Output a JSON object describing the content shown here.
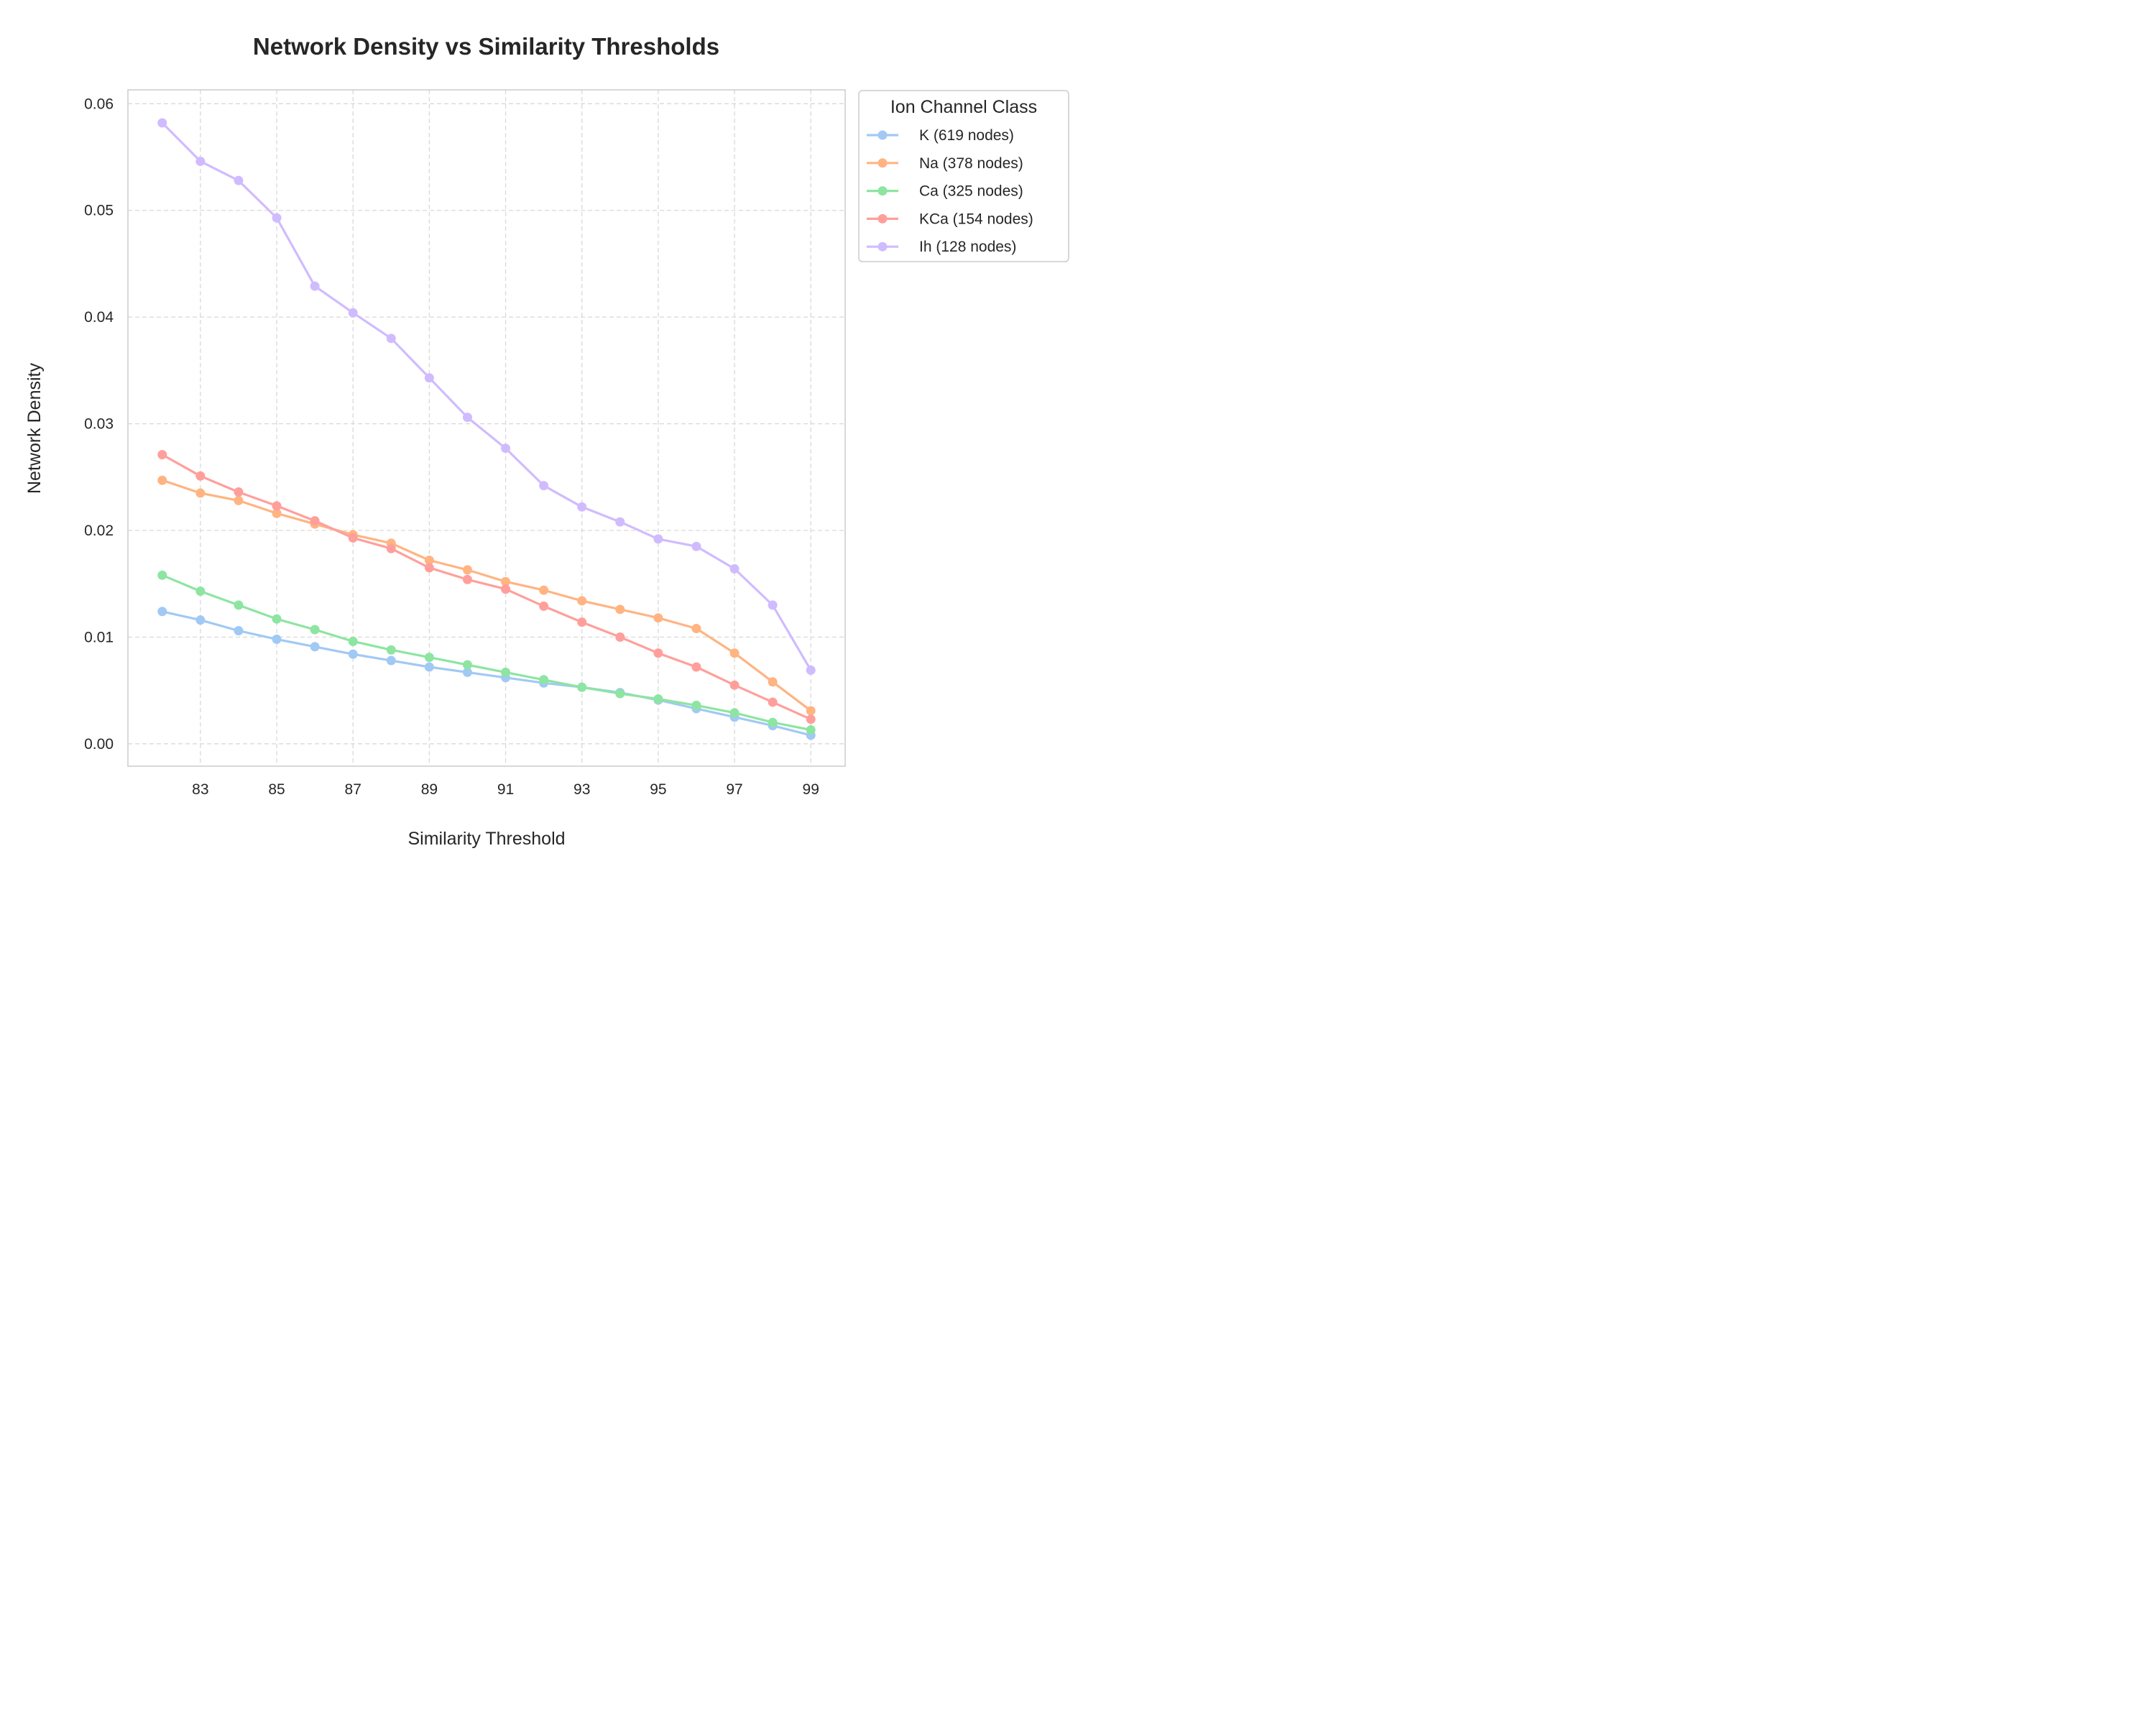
{
  "chart_data": {
    "type": "line",
    "title": "Network Density vs Similarity Thresholds",
    "xlabel": "Similarity Threshold",
    "ylabel": "Network Density",
    "x": [
      82,
      83,
      84,
      85,
      86,
      87,
      88,
      89,
      90,
      91,
      92,
      93,
      94,
      95,
      96,
      97,
      98,
      99
    ],
    "xticks": [
      "83",
      "85",
      "87",
      "89",
      "91",
      "93",
      "95",
      "97",
      "99"
    ],
    "yticks": [
      "0.00",
      "0.01",
      "0.02",
      "0.03",
      "0.04",
      "0.05",
      "0.06"
    ],
    "xlim": [
      81.1,
      99.9
    ],
    "ylim": [
      -0.0021,
      0.0613
    ],
    "grid": true,
    "legend": {
      "title": "Ion Channel Class",
      "placement": "outside-top-right"
    },
    "series": [
      {
        "name": "K (619 nodes)",
        "color": "#a1c9f4",
        "values": [
          0.0124,
          0.0116,
          0.0106,
          0.0098,
          0.0091,
          0.0084,
          0.0078,
          0.0072,
          0.0067,
          0.0062,
          0.0057,
          0.0053,
          0.0048,
          0.0041,
          0.0033,
          0.0025,
          0.0017,
          0.0008
        ]
      },
      {
        "name": "Na (378 nodes)",
        "color": "#ffb482",
        "values": [
          0.0247,
          0.0235,
          0.0228,
          0.0216,
          0.0206,
          0.0196,
          0.0188,
          0.0172,
          0.0163,
          0.0152,
          0.0144,
          0.0134,
          0.0126,
          0.0118,
          0.0108,
          0.0085,
          0.0058,
          0.0031
        ]
      },
      {
        "name": "Ca (325 nodes)",
        "color": "#8de5a1",
        "values": [
          0.0158,
          0.0143,
          0.013,
          0.0117,
          0.0107,
          0.0096,
          0.0088,
          0.0081,
          0.0074,
          0.0067,
          0.006,
          0.0053,
          0.0047,
          0.0042,
          0.0036,
          0.0029,
          0.002,
          0.0013
        ]
      },
      {
        "name": "KCa (154 nodes)",
        "color": "#ff9f9b",
        "values": [
          0.0271,
          0.0251,
          0.0236,
          0.0223,
          0.0209,
          0.0193,
          0.0183,
          0.0165,
          0.0154,
          0.0145,
          0.0129,
          0.0114,
          0.01,
          0.0085,
          0.0072,
          0.0055,
          0.0039,
          0.0023
        ]
      },
      {
        "name": "Ih (128 nodes)",
        "color": "#d0bbff",
        "values": [
          0.0582,
          0.0546,
          0.0528,
          0.0493,
          0.0429,
          0.0404,
          0.038,
          0.0343,
          0.0306,
          0.0277,
          0.0242,
          0.0222,
          0.0208,
          0.0192,
          0.0185,
          0.0164,
          0.013,
          0.0069
        ]
      }
    ]
  }
}
